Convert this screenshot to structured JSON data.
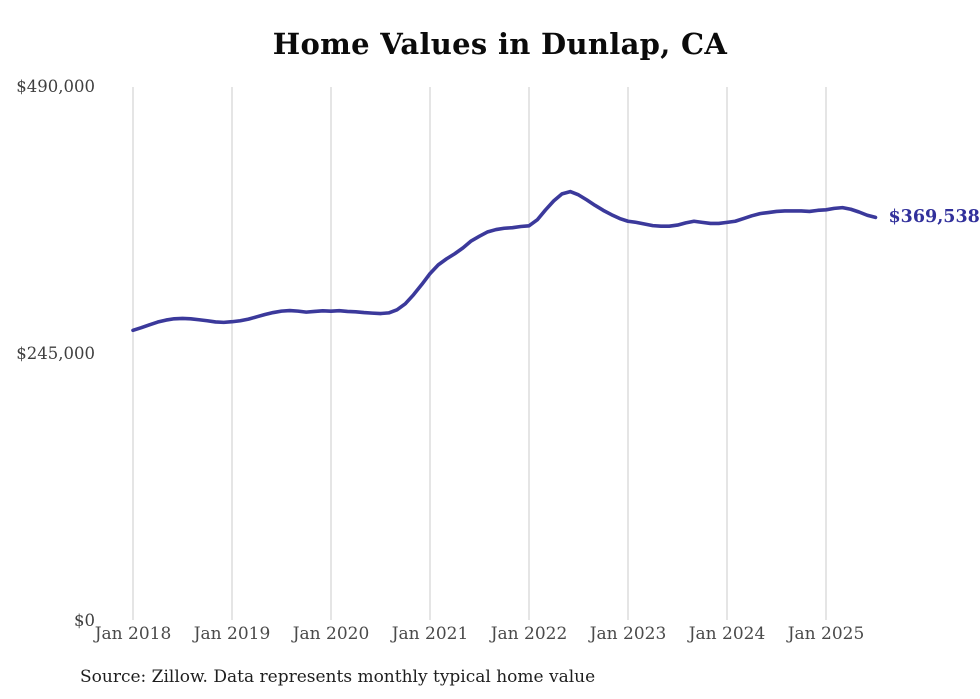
{
  "title": "Home Values in Dunlap, CA",
  "source_note": "Source: Zillow. Data represents monthly typical home value",
  "end_label": "$369,538",
  "colors": {
    "line": "#3b399b",
    "end_label": "#31309b",
    "grid": "#cbcbcb",
    "x_axis_text": "#4a4a4a",
    "y_axis_text": "#3f3f3f",
    "title_text": "#0b0b0b",
    "source_text": "#1e1e1e",
    "background": "#ffffff"
  },
  "chart_data": {
    "type": "line",
    "title": "Home Values in Dunlap, CA",
    "unit": "USD",
    "grid": "vertical-only",
    "legend": "none",
    "ylim": [
      0,
      490000
    ],
    "y_ticks": [
      {
        "label": "$490,000",
        "value": 490000
      },
      {
        "label": "$245,000",
        "value": 245000
      },
      {
        "label": "$0",
        "value": 0
      }
    ],
    "x_ticks": [
      {
        "label": "Jan 2018",
        "month_index": 0
      },
      {
        "label": "Jan 2019",
        "month_index": 12
      },
      {
        "label": "Jan 2020",
        "month_index": 24
      },
      {
        "label": "Jan 2021",
        "month_index": 36
      },
      {
        "label": "Jan 2022",
        "month_index": 48
      },
      {
        "label": "Jan 2023",
        "month_index": 60
      },
      {
        "label": "Jan 2024",
        "month_index": 72
      },
      {
        "label": "Jan 2025",
        "month_index": 84
      }
    ],
    "x": [
      "2018-01",
      "2018-02",
      "2018-03",
      "2018-04",
      "2018-05",
      "2018-06",
      "2018-07",
      "2018-08",
      "2018-09",
      "2018-10",
      "2018-11",
      "2018-12",
      "2019-01",
      "2019-02",
      "2019-03",
      "2019-04",
      "2019-05",
      "2019-06",
      "2019-07",
      "2019-08",
      "2019-09",
      "2019-10",
      "2019-11",
      "2019-12",
      "2020-01",
      "2020-02",
      "2020-03",
      "2020-04",
      "2020-05",
      "2020-06",
      "2020-07",
      "2020-08",
      "2020-09",
      "2020-10",
      "2020-11",
      "2020-12",
      "2021-01",
      "2021-02",
      "2021-03",
      "2021-04",
      "2021-05",
      "2021-06",
      "2021-07",
      "2021-08",
      "2021-09",
      "2021-10",
      "2021-11",
      "2021-12",
      "2022-01",
      "2022-02",
      "2022-03",
      "2022-04",
      "2022-05",
      "2022-06",
      "2022-07",
      "2022-08",
      "2022-09",
      "2022-10",
      "2022-11",
      "2022-12",
      "2023-01",
      "2023-02",
      "2023-03",
      "2023-04",
      "2023-05",
      "2023-06",
      "2023-07",
      "2023-08",
      "2023-09",
      "2023-10",
      "2023-11",
      "2023-12",
      "2024-01",
      "2024-02",
      "2024-03",
      "2024-04",
      "2024-05",
      "2024-06",
      "2024-07",
      "2024-08",
      "2024-09",
      "2024-10",
      "2024-11",
      "2024-12",
      "2025-01",
      "2025-02",
      "2025-03",
      "2025-04",
      "2025-05",
      "2025-06",
      "2025-07"
    ],
    "values": [
      266000,
      268400,
      271100,
      273600,
      275400,
      276600,
      276900,
      276600,
      275700,
      274800,
      273700,
      273300,
      273900,
      274800,
      276300,
      278400,
      280500,
      282300,
      283600,
      284100,
      283600,
      282700,
      283300,
      283900,
      283600,
      284000,
      283300,
      283000,
      282300,
      281800,
      281400,
      282000,
      284800,
      290300,
      298600,
      308000,
      318000,
      326000,
      331500,
      336200,
      341600,
      348000,
      352300,
      356300,
      358400,
      359600,
      360100,
      361200,
      361800,
      367300,
      376400,
      384700,
      391100,
      393200,
      390200,
      385600,
      380600,
      376000,
      372000,
      368500,
      366000,
      365000,
      363500,
      362000,
      361500,
      361500,
      362500,
      364500,
      366000,
      365000,
      364000,
      364000,
      365000,
      366000,
      368500,
      371000,
      373000,
      374000,
      375000,
      375500,
      375500,
      375500,
      375000,
      376000,
      376500,
      377800,
      378500,
      377000,
      374500,
      371500,
      369538
    ],
    "final_value": 369538,
    "final_value_label": "$369,538",
    "source": "Source: Zillow. Data represents monthly typical home value"
  }
}
